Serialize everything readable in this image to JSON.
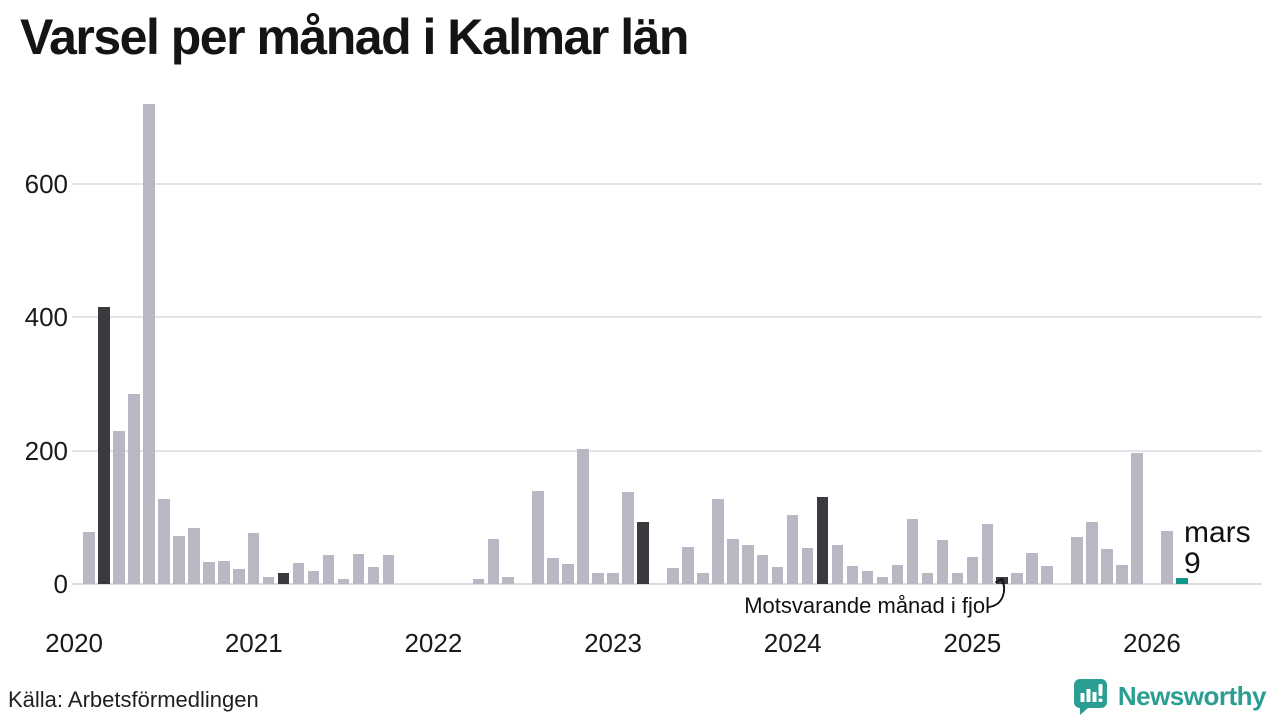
{
  "title": "Varsel per månad i Kalmar län",
  "source": "Källa: Arbetsförmedlingen",
  "annotation": {
    "text": "Motsvarande månad i fjol"
  },
  "current_label": {
    "month": "mars",
    "value": "9"
  },
  "branding": {
    "name": "Newsworthy",
    "teal": "#2b9e94"
  },
  "colors": {
    "bar_default": "#b9b7c4",
    "bar_highlight_march": "#3b3a3f",
    "bar_current": "#119687",
    "gridline": "#e4e3e9",
    "axis_text": "#1a1a1a"
  },
  "y_axis": {
    "tick_labels": [
      "0",
      "200",
      "400",
      "600"
    ],
    "tick_values": [
      0,
      200,
      400,
      600
    ]
  },
  "x_axis": {
    "year_labels": [
      "2020",
      "2021",
      "2022",
      "2023",
      "2024",
      "2025",
      "2026"
    ]
  },
  "chart_data": {
    "type": "bar",
    "title": "Varsel per månad i Kalmar län",
    "xlabel": "",
    "ylabel": "",
    "ylim": [
      0,
      730
    ],
    "grid": "horizontal",
    "frequency": "monthly",
    "start_month": "2020-01",
    "end_month": "2026-03",
    "values": [
      0,
      78,
      415,
      230,
      285,
      720,
      127,
      72,
      84,
      33,
      34,
      23,
      77,
      10,
      17,
      32,
      19,
      44,
      8,
      45,
      25,
      44,
      0,
      0,
      0,
      0,
      0,
      8,
      68,
      10,
      0,
      140,
      39,
      30,
      202,
      17,
      17,
      138,
      93,
      0,
      24,
      56,
      17,
      128,
      67,
      58,
      44,
      26,
      103,
      54,
      130,
      58,
      27,
      19,
      11,
      28,
      97,
      17,
      66,
      17,
      41,
      90,
      10,
      17,
      46,
      27,
      0,
      70,
      93,
      52,
      29,
      196,
      0,
      80,
      9
    ],
    "march_highlight_indices": [
      2,
      14,
      26,
      38,
      50,
      62
    ],
    "current_index": 74,
    "current_point": {
      "label": "mars",
      "value": 9
    },
    "highlight_meaning": "Motsvarande månad i fjol"
  }
}
